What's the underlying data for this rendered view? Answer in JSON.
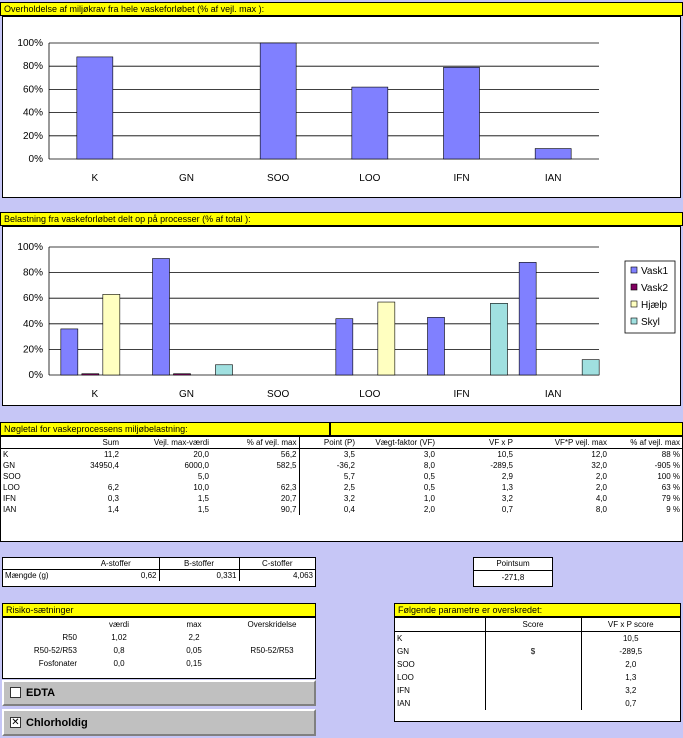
{
  "chart1": {
    "title": "Overholdelse af miljøkrav fra hele vaskeforløbet (% af vejl. max ):",
    "type": "bar",
    "categories": [
      "K",
      "GN",
      "SOO",
      "LOO",
      "IFN",
      "IAN"
    ],
    "values": [
      88,
      0,
      100,
      62,
      79,
      9
    ],
    "ylim": [
      0,
      100
    ],
    "yticks": [
      "0%",
      "20%",
      "40%",
      "60%",
      "80%",
      "100%"
    ],
    "color": "#8080ff"
  },
  "chart2": {
    "title": "Belastning fra vaskeforløbet delt op på processer (% af total ):",
    "type": "bar",
    "categories": [
      "K",
      "GN",
      "SOO",
      "LOO",
      "IFN",
      "IAN"
    ],
    "ylim": [
      0,
      100
    ],
    "yticks": [
      "0%",
      "20%",
      "40%",
      "60%",
      "80%",
      "100%"
    ],
    "series": [
      {
        "name": "Vask1",
        "color": "#8080ff",
        "values": [
          36,
          91,
          0,
          44,
          45,
          88
        ]
      },
      {
        "name": "Vask2",
        "color": "#800060",
        "values": [
          1,
          1,
          0,
          0,
          0,
          0
        ]
      },
      {
        "name": "Hjælp",
        "color": "#ffffc0",
        "values": [
          63,
          0,
          0,
          57,
          0,
          0
        ]
      },
      {
        "name": "Skyl",
        "color": "#a0e0e0",
        "values": [
          0,
          8,
          0,
          0,
          56,
          12
        ]
      }
    ]
  },
  "chart_data": [
    {
      "type": "bar",
      "title": "Overholdelse af miljøkrav fra hele vaskeforløbet (% af vejl. max ):",
      "categories": [
        "K",
        "GN",
        "SOO",
        "LOO",
        "IFN",
        "IAN"
      ],
      "values": [
        88,
        0,
        100,
        62,
        79,
        9
      ],
      "ylim": [
        0,
        100
      ]
    },
    {
      "type": "bar",
      "title": "Belastning fra vaskeforløbet delt op på processer (% af total ):",
      "categories": [
        "K",
        "GN",
        "SOO",
        "LOO",
        "IFN",
        "IAN"
      ],
      "ylim": [
        0,
        100
      ],
      "series": [
        {
          "name": "Vask1",
          "values": [
            36,
            91,
            0,
            44,
            45,
            88
          ]
        },
        {
          "name": "Vask2",
          "values": [
            1,
            1,
            0,
            0,
            0,
            0
          ]
        },
        {
          "name": "Hjælp",
          "values": [
            63,
            0,
            0,
            57,
            0,
            0
          ]
        },
        {
          "name": "Skyl",
          "values": [
            0,
            8,
            0,
            0,
            56,
            12
          ]
        }
      ],
      "legend": "right"
    }
  ],
  "keytable": {
    "title": "Nøgletal for vaskeprocessens miljøbelastning:",
    "headers": [
      "",
      "Sum",
      "Vejl. max-værdi",
      "% af vejl. max",
      "Point (P)",
      "Vægt-faktor (VF)",
      "VF x P",
      "VF*P vejl. max",
      "% af vejl. max"
    ],
    "rows": [
      [
        "K",
        "11,2",
        "20,0",
        "56,2",
        "3,5",
        "3,0",
        "10,5",
        "12,0",
        "88 %"
      ],
      [
        "GN",
        "34950,4",
        "6000,0",
        "582,5",
        "-36,2",
        "8,0",
        "-289,5",
        "32,0",
        "-905 %"
      ],
      [
        "SOO",
        "",
        "5,0",
        "",
        "5,7",
        "0,5",
        "2,9",
        "2,0",
        "100 %"
      ],
      [
        "LOO",
        "6,2",
        "10,0",
        "62,3",
        "2,5",
        "0,5",
        "1,3",
        "2,0",
        "63 %"
      ],
      [
        "IFN",
        "0,3",
        "1,5",
        "20,7",
        "3,2",
        "1,0",
        "3,2",
        "4,0",
        "79 %"
      ],
      [
        "IAN",
        "1,4",
        "1,5",
        "90,7",
        "0,4",
        "2,0",
        "0,7",
        "8,0",
        "9 %"
      ]
    ]
  },
  "stoffer": {
    "headers": [
      "",
      "A-stoffer",
      "B-stoffer",
      "C-stoffer"
    ],
    "row": [
      "Mængde (g)",
      "0,62",
      "0,331",
      "4,063"
    ]
  },
  "pointsum": {
    "label": "Pointsum",
    "value": "-271,8"
  },
  "risiko": {
    "title": "Risiko-sætninger",
    "headers": [
      "",
      "værdi",
      "max",
      "Overskridelse"
    ],
    "rows": [
      [
        "R50",
        "1,02",
        "2,2",
        ""
      ],
      [
        "R50-52/R53",
        "0,8",
        "0,05",
        "R50-52/R53"
      ],
      [
        "Fosfonater",
        "0,0",
        "0,15",
        ""
      ]
    ]
  },
  "checkboxes": [
    {
      "label": "EDTA",
      "checked": false,
      "mark": ""
    },
    {
      "label": "Chlorholdig",
      "checked": true,
      "mark": "✕"
    }
  ],
  "parametre": {
    "title": "Følgende parametre er overskredet:",
    "headers": [
      "",
      "Score",
      "VF x P score"
    ],
    "rows": [
      [
        "K",
        "",
        "10,5"
      ],
      [
        "GN",
        "$",
        "-289,5"
      ],
      [
        "SOO",
        "",
        "2,0"
      ],
      [
        "LOO",
        "",
        "1,3"
      ],
      [
        "IFN",
        "",
        "3,2"
      ],
      [
        "IAN",
        "",
        "0,7"
      ]
    ]
  }
}
